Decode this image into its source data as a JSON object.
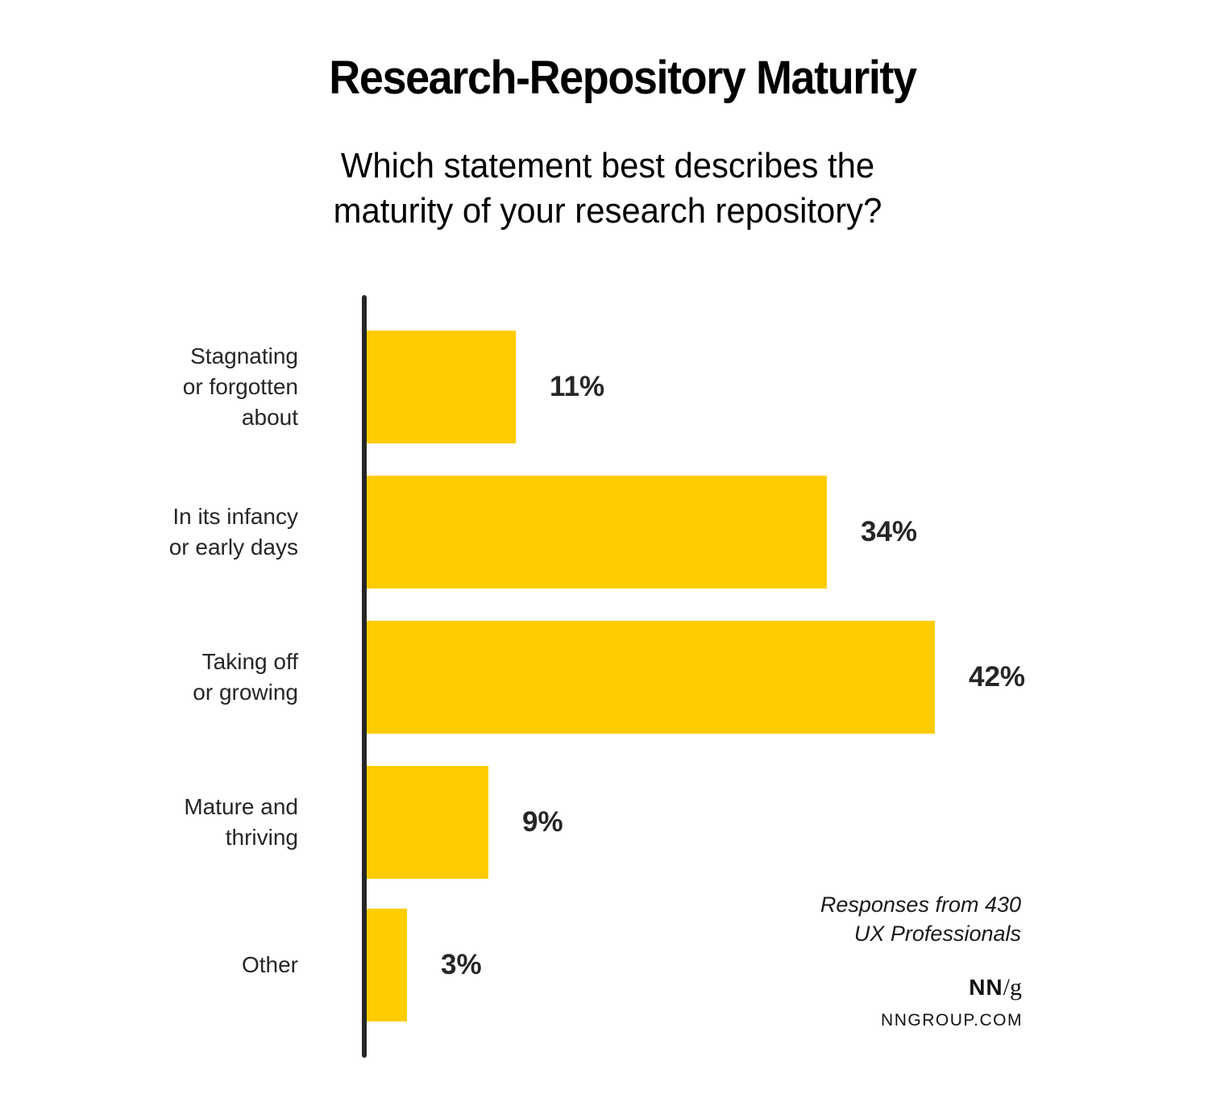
{
  "header": {
    "title": "Research-Repository Maturity",
    "subtitle_lines": [
      "Which statement best describes the",
      "maturity of your research repository?"
    ]
  },
  "colors": {
    "bar": "#FFCC00",
    "axis": "#262626",
    "text": "#262626"
  },
  "rows": [
    {
      "label_lines": [
        "Stagnating",
        "or forgotten",
        "about"
      ],
      "value": 11,
      "value_label": "11%"
    },
    {
      "label_lines": [
        "In its infancy",
        "or early days"
      ],
      "value": 34,
      "value_label": "34%"
    },
    {
      "label_lines": [
        "Taking off",
        "or growing"
      ],
      "value": 42,
      "value_label": "42%"
    },
    {
      "label_lines": [
        "Mature and",
        "thriving"
      ],
      "value": 9,
      "value_label": "9%"
    },
    {
      "label_lines": [
        "Other"
      ],
      "value": 3,
      "value_label": "3%"
    }
  ],
  "note": {
    "lines": [
      "Responses from 430",
      "UX Professionals"
    ]
  },
  "brand": {
    "logo_bold": "NN",
    "logo_slash_g": "/g",
    "url": "NNGROUP.COM"
  },
  "chart_data": {
    "type": "bar",
    "orientation": "horizontal",
    "title": "Research-Repository Maturity",
    "subtitle": "Which statement best describes the maturity of your research repository?",
    "categories": [
      "Stagnating or forgotten about",
      "In its infancy or early days",
      "Taking off or growing",
      "Mature and thriving",
      "Other"
    ],
    "values": [
      11,
      34,
      42,
      9,
      3
    ],
    "unit": "%",
    "data_labels": [
      "11%",
      "34%",
      "42%",
      "9%",
      "3%"
    ],
    "xlabel": "",
    "ylabel": "",
    "grid": false,
    "legend": null,
    "annotations": [
      "Responses from 430 UX Professionals",
      "NN/g",
      "NNGROUP.COM"
    ]
  }
}
